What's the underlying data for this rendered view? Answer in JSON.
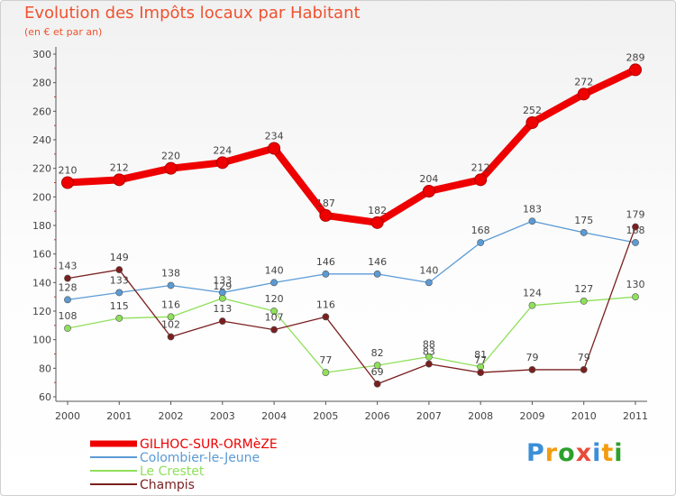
{
  "chart_data": {
    "type": "line",
    "title": "Evolution des Impôts locaux par Habitant",
    "subtitle": "(en € et par an)",
    "x": [
      2000,
      2001,
      2002,
      2003,
      2004,
      2005,
      2006,
      2007,
      2008,
      2009,
      2010,
      2011
    ],
    "x_tick_labels": [
      "2000",
      "2001",
      "2002",
      "2003",
      "2004",
      "2005",
      "2006",
      "2007",
      "2008",
      "2009",
      "2010",
      "2011"
    ],
    "ylim": [
      60,
      300
    ],
    "y_ticks": [
      60,
      80,
      100,
      120,
      140,
      160,
      180,
      200,
      220,
      240,
      260,
      280,
      300
    ],
    "grid": false,
    "legend_position": "bottom-left",
    "series": [
      {
        "name": "GILHOC-SUR-ORMèZE",
        "color": "#ee0000",
        "emphasis": true,
        "values": [
          210,
          212,
          220,
          224,
          234,
          187,
          182,
          204,
          212,
          252,
          272,
          289
        ]
      },
      {
        "name": "Colombier-le-Jeune",
        "color": "#5b9bd5",
        "emphasis": false,
        "values": [
          128,
          133,
          138,
          133,
          140,
          146,
          146,
          140,
          168,
          183,
          175,
          168
        ]
      },
      {
        "name": "Le Crestet",
        "color": "#8fe05a",
        "emphasis": false,
        "values": [
          108,
          115,
          116,
          129,
          120,
          77,
          82,
          88,
          81,
          124,
          127,
          130
        ]
      },
      {
        "name": "Champis",
        "color": "#7a1f1f",
        "emphasis": false,
        "values": [
          143,
          149,
          102,
          113,
          107,
          116,
          69,
          83,
          77,
          79,
          79,
          179
        ]
      }
    ]
  },
  "brand": {
    "logo_letters": [
      "P",
      "r",
      "o",
      "x",
      "i",
      "t",
      "i"
    ],
    "logo_colors": [
      "#3a8fd8",
      "#f39c12",
      "#2ca02c",
      "#e74c3c",
      "#3a8fd8",
      "#f39c12",
      "#2ca02c"
    ]
  }
}
